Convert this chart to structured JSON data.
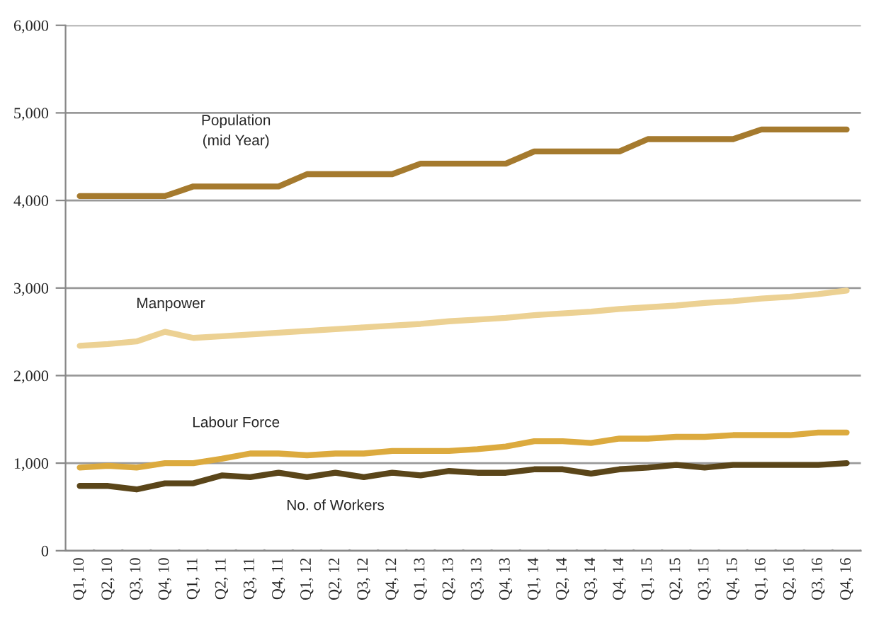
{
  "chart_data": {
    "type": "line",
    "categories": [
      "Q1, 10",
      "Q2, 10",
      "Q3, 10",
      "Q4, 10",
      "Q1, 11",
      "Q2, 11",
      "Q3, 11",
      "Q4, 11",
      "Q1, 12",
      "Q2, 12",
      "Q3, 12",
      "Q4, 12",
      "Q1, 13",
      "Q2, 13",
      "Q3, 13",
      "Q4, 13",
      "Q1, 14",
      "Q2, 14",
      "Q3, 14",
      "Q4, 14",
      "Q1, 15",
      "Q2, 15",
      "Q3, 15",
      "Q4, 15",
      "Q1, 16",
      "Q2, 16",
      "Q3, 16",
      "Q4, 16"
    ],
    "series": [
      {
        "name": "Population\n(mid Year)",
        "color": "#a57a2e",
        "values": [
          4050,
          4050,
          4050,
          4050,
          4160,
          4160,
          4160,
          4160,
          4300,
          4300,
          4300,
          4300,
          4420,
          4420,
          4420,
          4420,
          4560,
          4560,
          4560,
          4560,
          4700,
          4700,
          4700,
          4700,
          4810,
          4810,
          4810,
          4810
        ]
      },
      {
        "name": "Manpower",
        "color": "#ecd193",
        "values": [
          2340,
          2360,
          2390,
          2500,
          2430,
          2450,
          2470,
          2490,
          2510,
          2530,
          2550,
          2570,
          2590,
          2620,
          2640,
          2660,
          2690,
          2710,
          2730,
          2760,
          2780,
          2800,
          2830,
          2850,
          2880,
          2900,
          2930,
          2970
        ]
      },
      {
        "name": "Labour Force",
        "color": "#dcaa3e",
        "values": [
          950,
          970,
          950,
          1000,
          1000,
          1050,
          1110,
          1110,
          1090,
          1110,
          1110,
          1140,
          1140,
          1140,
          1160,
          1190,
          1250,
          1250,
          1230,
          1280,
          1280,
          1300,
          1300,
          1320,
          1320,
          1320,
          1350,
          1350
        ]
      },
      {
        "name": "No. of Workers",
        "color": "#5a4519",
        "values": [
          740,
          740,
          700,
          770,
          770,
          860,
          840,
          890,
          840,
          890,
          840,
          890,
          860,
          910,
          890,
          890,
          930,
          930,
          880,
          930,
          950,
          980,
          950,
          980,
          980,
          980,
          980,
          1000
        ]
      }
    ],
    "ylim": [
      0,
      6000
    ],
    "yticks": [
      {
        "value": 0,
        "label": "0"
      },
      {
        "value": 1000,
        "label": "1,000"
      },
      {
        "value": 2000,
        "label": "2,000"
      },
      {
        "value": 3000,
        "label": "3,000"
      },
      {
        "value": 4000,
        "label": "4,000"
      },
      {
        "value": 5000,
        "label": "5,000"
      },
      {
        "value": 6000,
        "label": "6,000"
      }
    ],
    "grid": "y",
    "legend": false,
    "marker": "none",
    "line_style": "solid"
  }
}
